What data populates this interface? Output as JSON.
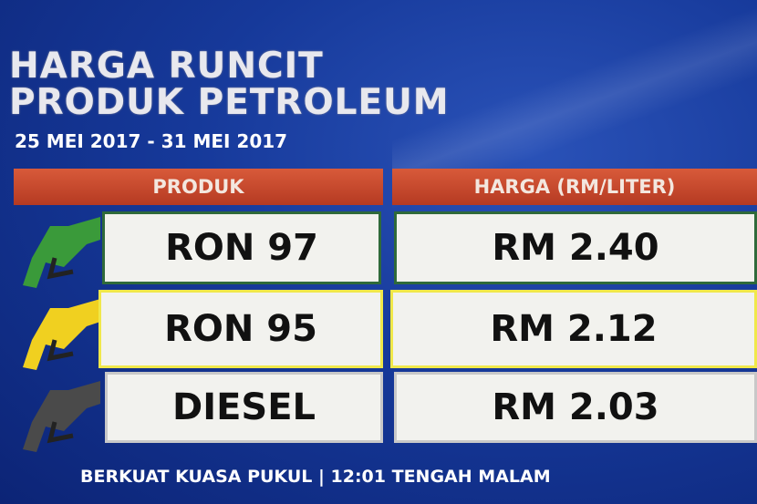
{
  "title": {
    "line1": "HARGA RUNCIT",
    "line2": "PRODUK PETROLEUM"
  },
  "date_range": "25 MEI 2017 - 31 MEI 2017",
  "table": {
    "headers": [
      "PRODUK",
      "HARGA (RM/LITER)"
    ],
    "rows": [
      {
        "product": "RON 97",
        "price": "RM 2.40",
        "nozzle_color": "#3a9a3a"
      },
      {
        "product": "RON 95",
        "price": "RM 2.12",
        "nozzle_color": "#f0d020"
      },
      {
        "product": "DIESEL",
        "price": "RM 2.03",
        "nozzle_color": "#4a4a4a"
      }
    ]
  },
  "footer": "BERKUAT KUASA PUKUL | 12:01 TENGAH MALAM"
}
